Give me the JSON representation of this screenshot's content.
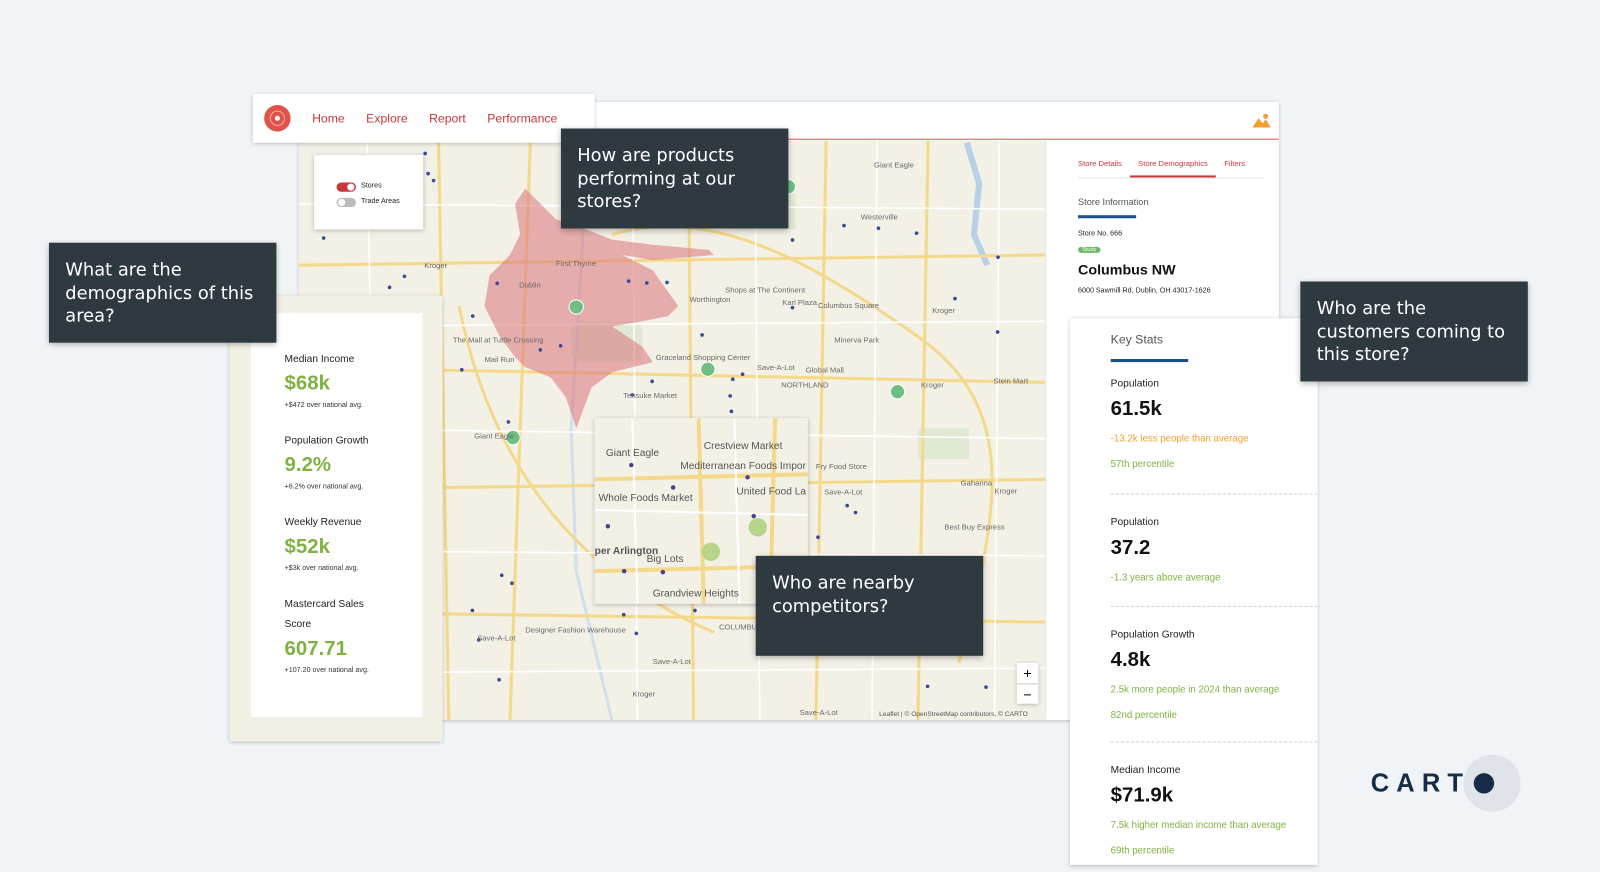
{
  "nav": {
    "items": [
      "Home",
      "Explore",
      "Report",
      "Performance"
    ]
  },
  "layers": [
    {
      "label": "Stores",
      "on": true
    },
    {
      "label": "Trade Areas",
      "on": false
    }
  ],
  "callouts": [
    "How are products performing at our stores?",
    "What are the demographics of this area?",
    "Who are the customers coming to this store?",
    "Who are nearby competitors?"
  ],
  "demographics": {
    "metrics": [
      {
        "label": "Median Income",
        "value": "$68k",
        "note": "+$472 over national avg."
      },
      {
        "label": "Population Growth",
        "value": "9.2%",
        "note": "+6.2% over national avg."
      },
      {
        "label": "Weekly Revenue",
        "value": "$52k",
        "note": "+$3k over national avg."
      },
      {
        "label": "Mastercard Sales Score",
        "value": "607.71",
        "note": "+107.20 over national avg."
      }
    ]
  },
  "sidebar": {
    "tabs": [
      "Store Details",
      "Store Demographics",
      "Filters"
    ],
    "active_tab": 1,
    "section": "Store Information",
    "store_no": "Store No. 666",
    "badge": "Study",
    "name": "Columbus NW",
    "address": "6000 Sawmill Rd, Dublin, OH 43017-1626"
  },
  "key_stats": {
    "title": "Key Stats",
    "items": [
      {
        "label": "Population",
        "value": "61.5k",
        "notes": [
          {
            "text": "-13.2k less people than average",
            "tone": "orange"
          },
          {
            "text": "57th percentile",
            "tone": "green"
          }
        ]
      },
      {
        "label": "Population",
        "value": "37.2",
        "notes": [
          {
            "text": "-1.3 years above average",
            "tone": "green"
          }
        ]
      },
      {
        "label": "Population Growth",
        "value": "4.8k",
        "notes": [
          {
            "text": "2.5k more people in 2024 than average",
            "tone": "green"
          },
          {
            "text": "82nd percentile",
            "tone": "green"
          }
        ]
      },
      {
        "label": "Median Income",
        "value": "$71.9k",
        "notes": [
          {
            "text": "7.5k higher median income than average",
            "tone": "green"
          },
          {
            "text": "69th percentile",
            "tone": "green"
          }
        ]
      }
    ]
  },
  "map": {
    "labels": [
      "Giant Eagle",
      "Westerville",
      "Kroger",
      "Dublin",
      "First Thyme",
      "Worthington",
      "Shops at The Continent",
      "Karl Plaza",
      "Columbus Square",
      "Kroger",
      "Minerva Park",
      "The Mall at Tuttle Crossing",
      "Graceland Shopping Center",
      "Save-A-Lot",
      "Global Mall",
      "NORTHLAND",
      "Tensuke Market",
      "Giant Eagle",
      "Stein Mart",
      "Kroger",
      "Gahanna",
      "Kroger",
      "Best Buy Express",
      "Save-A-Lot",
      "Designer Fashion Warehouse",
      "Save-A-Lot",
      "Save-A-Lot",
      "Kroger",
      "Save-A-Lot",
      "COLUMBUS",
      "Fry Food Store",
      "Mail Run"
    ],
    "inset_labels": [
      "Giant Eagle",
      "Crestview Market",
      "Mediterranean Foods Impor",
      "Whole Foods Market",
      "United Food La",
      "per Arlington",
      "Big Lots",
      "Grandview Heights"
    ],
    "zoom": [
      "+",
      "−"
    ],
    "attribution": "Leaflet | © OpenStreetMap contributors, © CARTO"
  },
  "logo": "CART"
}
